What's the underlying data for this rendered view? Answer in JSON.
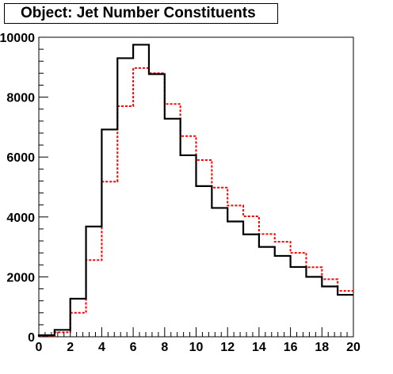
{
  "chart_data": {
    "type": "histogram",
    "title": "Object: Jet Number Constituents",
    "xlabel": "",
    "ylabel": "",
    "xlim": [
      0,
      20
    ],
    "ylim": [
      0,
      10000
    ],
    "bin_edges": [
      0,
      1,
      2,
      3,
      4,
      5,
      6,
      7,
      8,
      9,
      10,
      11,
      12,
      13,
      14,
      15,
      16,
      17,
      18,
      19,
      20
    ],
    "x_ticks": [
      0,
      2,
      4,
      6,
      8,
      10,
      12,
      14,
      16,
      18,
      20
    ],
    "y_ticks": [
      0,
      2000,
      4000,
      6000,
      8000,
      10000
    ],
    "grid": false,
    "legend": "none",
    "series": [
      {
        "color": "#000000",
        "style": "solid",
        "values": [
          50,
          230,
          1270,
          3680,
          6920,
          9300,
          9750,
          8770,
          7280,
          6060,
          5030,
          4300,
          3850,
          3420,
          3000,
          2700,
          2330,
          2000,
          1680,
          1400
        ]
      },
      {
        "color": "#ff0000",
        "style": "dashed",
        "values": [
          20,
          150,
          800,
          2560,
          5180,
          7700,
          8970,
          8800,
          7770,
          6700,
          5900,
          4980,
          4380,
          4020,
          3430,
          3170,
          2800,
          2320,
          1920,
          1530
        ]
      }
    ]
  }
}
